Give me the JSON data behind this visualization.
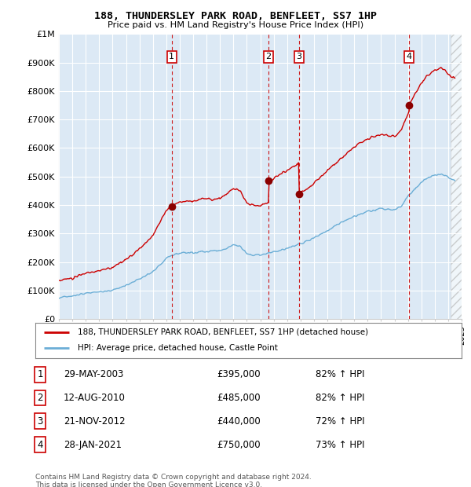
{
  "title": "188, THUNDERSLEY PARK ROAD, BENFLEET, SS7 1HP",
  "subtitle": "Price paid vs. HM Land Registry's House Price Index (HPI)",
  "background_color": "#dce9f5",
  "ylabel": "",
  "ylim": [
    0,
    1000000
  ],
  "yticks": [
    0,
    100000,
    200000,
    300000,
    400000,
    500000,
    600000,
    700000,
    800000,
    900000,
    1000000
  ],
  "ytick_labels": [
    "£0",
    "£100K",
    "£200K",
    "£300K",
    "£400K",
    "£500K",
    "£600K",
    "£700K",
    "£800K",
    "£900K",
    "£1M"
  ],
  "hpi_color": "#6baed6",
  "price_color": "#cc0000",
  "sale_markers": [
    {
      "num": 1,
      "price": 395000,
      "x": 2003.41
    },
    {
      "num": 2,
      "price": 485000,
      "x": 2010.62
    },
    {
      "num": 3,
      "price": 440000,
      "x": 2012.89
    },
    {
      "num": 4,
      "price": 750000,
      "x": 2021.08
    }
  ],
  "legend_entries": [
    "188, THUNDERSLEY PARK ROAD, BENFLEET, SS7 1HP (detached house)",
    "HPI: Average price, detached house, Castle Point"
  ],
  "table_rows": [
    {
      "num": 1,
      "date": "29-MAY-2003",
      "price": "£395,000",
      "hpi": "82% ↑ HPI"
    },
    {
      "num": 2,
      "date": "12-AUG-2010",
      "price": "£485,000",
      "hpi": "82% ↑ HPI"
    },
    {
      "num": 3,
      "date": "21-NOV-2012",
      "price": "£440,000",
      "hpi": "72% ↑ HPI"
    },
    {
      "num": 4,
      "date": "28-JAN-2021",
      "price": "£750,000",
      "hpi": "73% ↑ HPI"
    }
  ],
  "footnote": "Contains HM Land Registry data © Crown copyright and database right 2024.\nThis data is licensed under the Open Government Licence v3.0.",
  "xmin": 1995,
  "xmax": 2025,
  "hatch_start": 2024.17
}
